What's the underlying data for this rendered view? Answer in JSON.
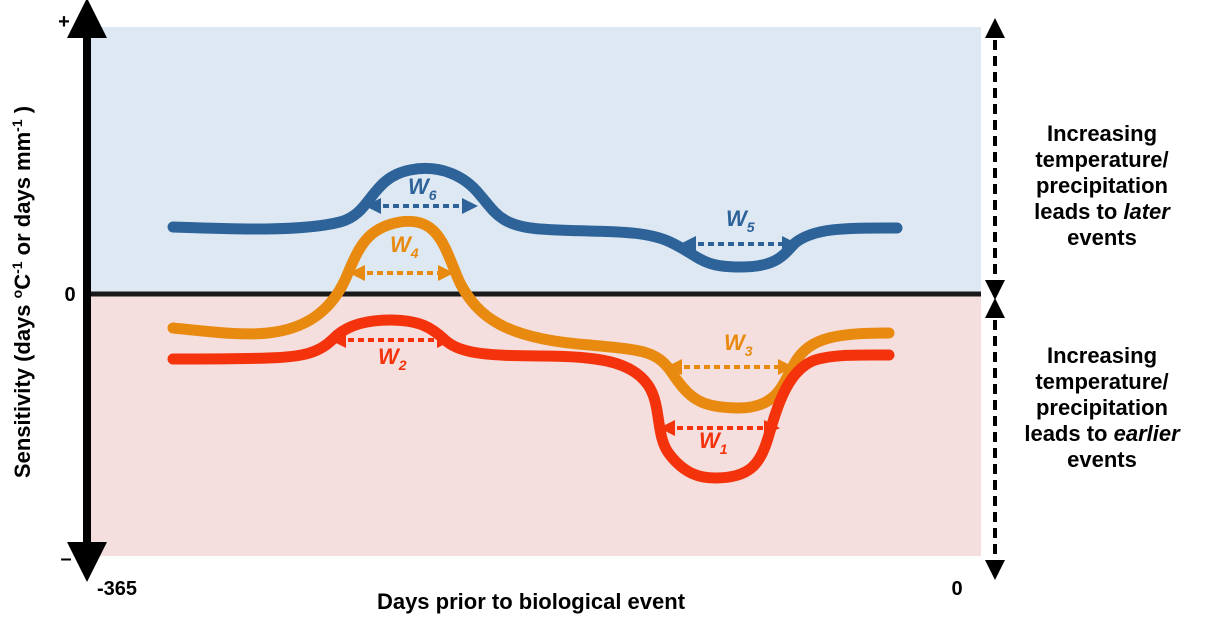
{
  "axes": {
    "y_label_main": "Sensitivity (days ",
    "y_label_deg": "o",
    "y_label_c": "C",
    "y_label_exp1": "-1",
    "y_label_mid": " or days mm",
    "y_label_exp2": "-1",
    "y_label_end": " )",
    "y_plus": "+",
    "y_minus": "–",
    "y_zero": "0",
    "x_label": "Days prior to biological event",
    "x_start": "-365",
    "x_end": "0"
  },
  "regions": {
    "upper_color": "#dde8f3",
    "lower_color": "#f4dfde"
  },
  "side_annotations": {
    "upper": {
      "line1": "Increasing",
      "line2": "temperature/",
      "line3": "precipitation",
      "line4_pre": "leads to ",
      "line4_em": "later",
      "line5": "events"
    },
    "lower": {
      "line1": "Increasing",
      "line2": "temperature/",
      "line3": "precipitation",
      "line4_pre": "leads to ",
      "line4_em": "earlier",
      "line5": "events"
    }
  },
  "curves": [
    {
      "name": "blue",
      "color": "#2e6399"
    },
    {
      "name": "orange",
      "color": "#e98a10"
    },
    {
      "name": "red",
      "color": "#f4330c"
    }
  ],
  "windows": [
    {
      "label": "W",
      "sub": "1",
      "color": "#f4330c"
    },
    {
      "label": "W",
      "sub": "2",
      "color": "#f4330c"
    },
    {
      "label": "W",
      "sub": "3",
      "color": "#e98a10"
    },
    {
      "label": "W",
      "sub": "4",
      "color": "#e98a10"
    },
    {
      "label": "W",
      "sub": "5",
      "color": "#2e6399"
    },
    {
      "label": "W",
      "sub": "6",
      "color": "#2e6399"
    }
  ]
}
